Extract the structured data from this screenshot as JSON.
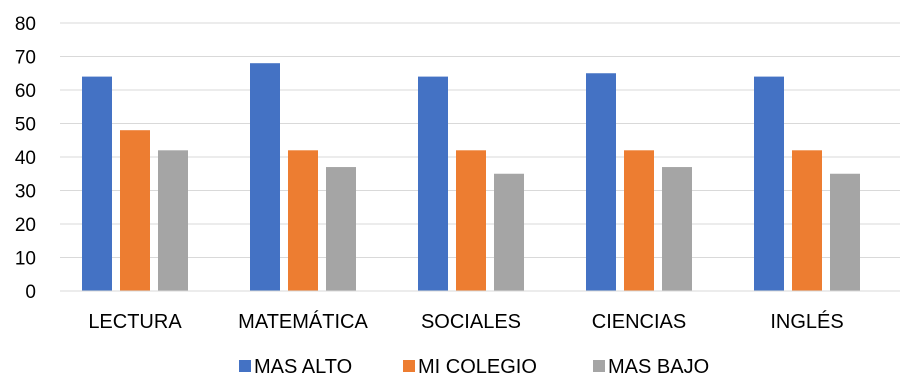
{
  "chart_data": {
    "type": "bar",
    "categories": [
      "LECTURA",
      "MATEMÁTICA",
      "SOCIALES",
      "CIENCIAS",
      "INGLÉS"
    ],
    "series": [
      {
        "name": "MAS ALTO",
        "color": "#4472C4",
        "values": [
          64,
          68,
          64,
          65,
          64
        ]
      },
      {
        "name": "MI COLEGIO",
        "color": "#ED7D31",
        "values": [
          48,
          42,
          42,
          42,
          42
        ]
      },
      {
        "name": "MAS BAJO",
        "color": "#A5A5A5",
        "values": [
          42,
          37,
          35,
          37,
          35
        ]
      }
    ],
    "ylim": [
      0,
      80
    ],
    "yticks": [
      0,
      10,
      20,
      30,
      40,
      50,
      60,
      70,
      80
    ],
    "grid": true,
    "legend_position": "bottom"
  }
}
